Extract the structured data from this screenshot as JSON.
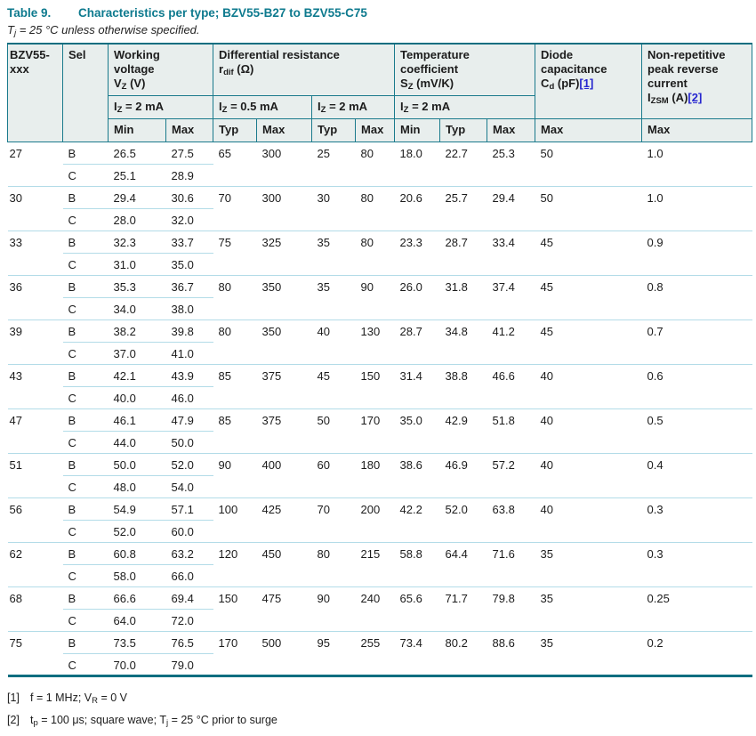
{
  "colors": {
    "accent_teal": "#0e7a8e",
    "border_teal": "#1a7a8c",
    "frame_teal": "#0c6e80",
    "header_bg": "#e8eeed",
    "light_blue": "#b3dce8",
    "link_blue": "#2727cf"
  },
  "caption": {
    "label": "Table 9.",
    "title": "Characteristics per type; BZV55-B27 to BZV55-C75"
  },
  "condition": {
    "pre": "T",
    "sub": "j",
    "post": " = 25 °C unless otherwise specified."
  },
  "table": {
    "header": {
      "product": {
        "l1": "BZV55-",
        "l2": "xxx"
      },
      "sel": "Sel",
      "working_voltage": {
        "l1": "Working",
        "l2": "voltage",
        "f": {
          "pre": "V",
          "sub": "Z",
          "post": " (V)"
        }
      },
      "diff_resistance": {
        "l1": "Differential resistance",
        "f": {
          "pre": "r",
          "sub": "dif",
          "post": " (Ω)"
        }
      },
      "temp_coefficient": {
        "l1": "Temperature",
        "l2": "coefficient",
        "f": {
          "pre": "S",
          "sub": "Z",
          "post": " (mV/K)"
        }
      },
      "diode_capacitance": {
        "l1": "Diode",
        "l2": "capacitance",
        "f": {
          "pre": "C",
          "sub": "d",
          "post": " (pF)",
          "link": "[1]"
        }
      },
      "peak_reverse_current": {
        "l1": "Non-repetitive",
        "l2": "peak reverse",
        "l3": "current",
        "f": {
          "pre": "I",
          "sub": "ZSM",
          "post": " (A)",
          "link": "[2]"
        }
      },
      "iz_2ma": {
        "pre": "I",
        "sub": "Z",
        "post": " = 2 mA"
      },
      "iz_05ma": {
        "pre": "I",
        "sub": "Z",
        "post": " = 0.5 mA"
      },
      "cols": [
        "Min",
        "Max",
        "Typ",
        "Max",
        "Typ",
        "Max",
        "Min",
        "Typ",
        "Max",
        "Max",
        "Max"
      ]
    },
    "groups": [
      {
        "code": "27",
        "b": {
          "sel": "B",
          "vz_min": "26.5",
          "vz_max": "27.5"
        },
        "c": {
          "sel": "C",
          "vz_min": "25.1",
          "vz_max": "28.9"
        },
        "rdif_05": {
          "typ": "65",
          "max": "300"
        },
        "rdif_2": {
          "typ": "25",
          "max": "80"
        },
        "sz": {
          "min": "18.0",
          "typ": "22.7",
          "max": "25.3"
        },
        "cd_max": "50",
        "izsm_max": "1.0"
      },
      {
        "code": "30",
        "b": {
          "sel": "B",
          "vz_min": "29.4",
          "vz_max": "30.6"
        },
        "c": {
          "sel": "C",
          "vz_min": "28.0",
          "vz_max": "32.0"
        },
        "rdif_05": {
          "typ": "70",
          "max": "300"
        },
        "rdif_2": {
          "typ": "30",
          "max": "80"
        },
        "sz": {
          "min": "20.6",
          "typ": "25.7",
          "max": "29.4"
        },
        "cd_max": "50",
        "izsm_max": "1.0"
      },
      {
        "code": "33",
        "b": {
          "sel": "B",
          "vz_min": "32.3",
          "vz_max": "33.7"
        },
        "c": {
          "sel": "C",
          "vz_min": "31.0",
          "vz_max": "35.0"
        },
        "rdif_05": {
          "typ": "75",
          "max": "325"
        },
        "rdif_2": {
          "typ": "35",
          "max": "80"
        },
        "sz": {
          "min": "23.3",
          "typ": "28.7",
          "max": "33.4"
        },
        "cd_max": "45",
        "izsm_max": "0.9"
      },
      {
        "code": "36",
        "b": {
          "sel": "B",
          "vz_min": "35.3",
          "vz_max": "36.7"
        },
        "c": {
          "sel": "C",
          "vz_min": "34.0",
          "vz_max": "38.0"
        },
        "rdif_05": {
          "typ": "80",
          "max": "350"
        },
        "rdif_2": {
          "typ": "35",
          "max": "90"
        },
        "sz": {
          "min": "26.0",
          "typ": "31.8",
          "max": "37.4"
        },
        "cd_max": "45",
        "izsm_max": "0.8"
      },
      {
        "code": "39",
        "b": {
          "sel": "B",
          "vz_min": "38.2",
          "vz_max": "39.8"
        },
        "c": {
          "sel": "C",
          "vz_min": "37.0",
          "vz_max": "41.0"
        },
        "rdif_05": {
          "typ": "80",
          "max": "350"
        },
        "rdif_2": {
          "typ": "40",
          "max": "130"
        },
        "sz": {
          "min": "28.7",
          "typ": "34.8",
          "max": "41.2"
        },
        "cd_max": "45",
        "izsm_max": "0.7"
      },
      {
        "code": "43",
        "b": {
          "sel": "B",
          "vz_min": "42.1",
          "vz_max": "43.9"
        },
        "c": {
          "sel": "C",
          "vz_min": "40.0",
          "vz_max": "46.0"
        },
        "rdif_05": {
          "typ": "85",
          "max": "375"
        },
        "rdif_2": {
          "typ": "45",
          "max": "150"
        },
        "sz": {
          "min": "31.4",
          "typ": "38.8",
          "max": "46.6"
        },
        "cd_max": "40",
        "izsm_max": "0.6"
      },
      {
        "code": "47",
        "b": {
          "sel": "B",
          "vz_min": "46.1",
          "vz_max": "47.9"
        },
        "c": {
          "sel": "C",
          "vz_min": "44.0",
          "vz_max": "50.0"
        },
        "rdif_05": {
          "typ": "85",
          "max": "375"
        },
        "rdif_2": {
          "typ": "50",
          "max": "170"
        },
        "sz": {
          "min": "35.0",
          "typ": "42.9",
          "max": "51.8"
        },
        "cd_max": "40",
        "izsm_max": "0.5"
      },
      {
        "code": "51",
        "b": {
          "sel": "B",
          "vz_min": "50.0",
          "vz_max": "52.0"
        },
        "c": {
          "sel": "C",
          "vz_min": "48.0",
          "vz_max": "54.0"
        },
        "rdif_05": {
          "typ": "90",
          "max": "400"
        },
        "rdif_2": {
          "typ": "60",
          "max": "180"
        },
        "sz": {
          "min": "38.6",
          "typ": "46.9",
          "max": "57.2"
        },
        "cd_max": "40",
        "izsm_max": "0.4"
      },
      {
        "code": "56",
        "b": {
          "sel": "B",
          "vz_min": "54.9",
          "vz_max": "57.1"
        },
        "c": {
          "sel": "C",
          "vz_min": "52.0",
          "vz_max": "60.0"
        },
        "rdif_05": {
          "typ": "100",
          "max": "425"
        },
        "rdif_2": {
          "typ": "70",
          "max": "200"
        },
        "sz": {
          "min": "42.2",
          "typ": "52.0",
          "max": "63.8"
        },
        "cd_max": "40",
        "izsm_max": "0.3"
      },
      {
        "code": "62",
        "b": {
          "sel": "B",
          "vz_min": "60.8",
          "vz_max": "63.2"
        },
        "c": {
          "sel": "C",
          "vz_min": "58.0",
          "vz_max": "66.0"
        },
        "rdif_05": {
          "typ": "120",
          "max": "450"
        },
        "rdif_2": {
          "typ": "80",
          "max": "215"
        },
        "sz": {
          "min": "58.8",
          "typ": "64.4",
          "max": "71.6"
        },
        "cd_max": "35",
        "izsm_max": "0.3"
      },
      {
        "code": "68",
        "b": {
          "sel": "B",
          "vz_min": "66.6",
          "vz_max": "69.4"
        },
        "c": {
          "sel": "C",
          "vz_min": "64.0",
          "vz_max": "72.0"
        },
        "rdif_05": {
          "typ": "150",
          "max": "475"
        },
        "rdif_2": {
          "typ": "90",
          "max": "240"
        },
        "sz": {
          "min": "65.6",
          "typ": "71.7",
          "max": "79.8"
        },
        "cd_max": "35",
        "izsm_max": "0.25"
      },
      {
        "code": "75",
        "b": {
          "sel": "B",
          "vz_min": "73.5",
          "vz_max": "76.5"
        },
        "c": {
          "sel": "C",
          "vz_min": "70.0",
          "vz_max": "79.0"
        },
        "rdif_05": {
          "typ": "170",
          "max": "500"
        },
        "rdif_2": {
          "typ": "95",
          "max": "255"
        },
        "sz": {
          "min": "73.4",
          "typ": "80.2",
          "max": "88.6"
        },
        "cd_max": "35",
        "izsm_max": "0.2"
      }
    ]
  },
  "footnotes": [
    {
      "id": "[1]",
      "p1": "f = 1 MHz; V",
      "s1": "R",
      "p2": " = 0 V"
    },
    {
      "id": "[2]",
      "p1": "t",
      "s1": "p",
      "p2": " = 100 μs; square wave; T",
      "s2": "j",
      "p3": " = 25 °C prior to surge"
    }
  ]
}
